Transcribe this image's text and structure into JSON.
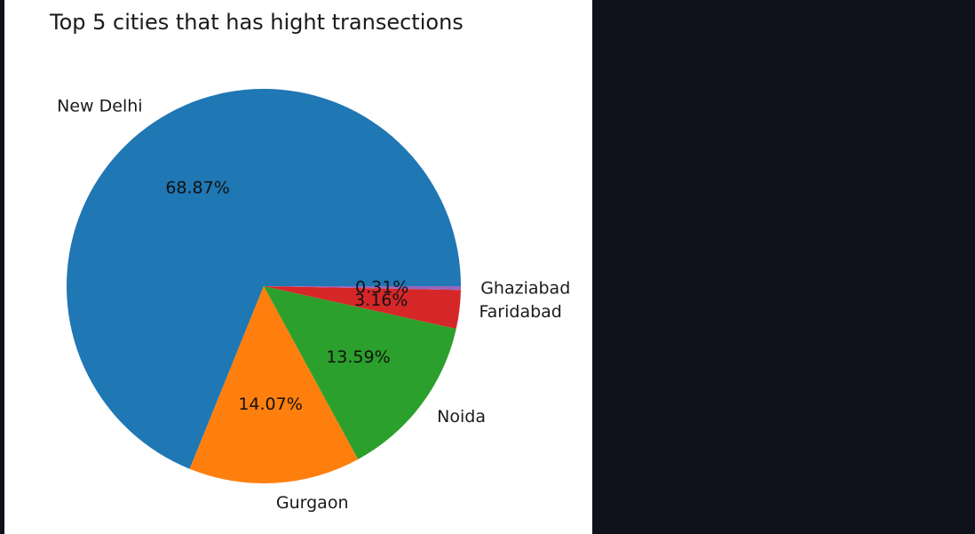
{
  "chart_data": {
    "type": "pie",
    "title": "Top 5 cities that has hight transections",
    "start_angle_deg": 0,
    "direction": "counterclockwise",
    "slices": [
      {
        "label": "New Delhi",
        "value": 68.87,
        "pct_label": "68.87%",
        "color": "#1f77b4"
      },
      {
        "label": "Gurgaon",
        "value": 14.07,
        "pct_label": "14.07%",
        "color": "#ff7f0e"
      },
      {
        "label": "Noida",
        "value": 13.59,
        "pct_label": "13.59%",
        "color": "#2ca02c"
      },
      {
        "label": "Faridabad",
        "value": 3.16,
        "pct_label": "3.16%",
        "color": "#d62728"
      },
      {
        "label": "Ghaziabad",
        "value": 0.31,
        "pct_label": "0.31%",
        "color": "#9467bd"
      }
    ]
  }
}
